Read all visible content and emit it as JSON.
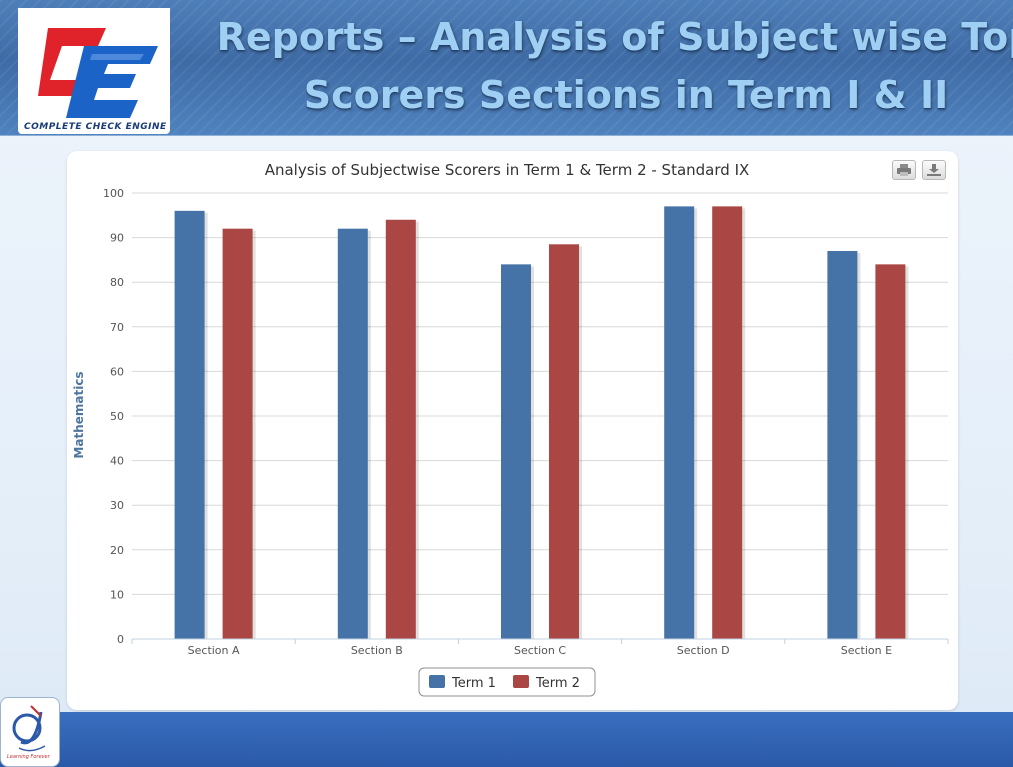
{
  "slide": {
    "title_line1": "Reports – Analysis of Subject wise Top",
    "title_line2": "Scorers Sections in Term I & II",
    "logo_text": "COMPLETE CHECK ENGINE",
    "footer_logo_text": "Learning Forever"
  },
  "toolbar": {
    "print_icon": "printer-icon",
    "download_icon": "download-icon"
  },
  "colors": {
    "term1": "#4572a7",
    "term2": "#aa4643",
    "grid": "#d8d8d8",
    "axis_text": "#555555",
    "axis_title": "#4d759e"
  },
  "chart_data": {
    "type": "bar",
    "title": "Analysis of Subjectwise Scorers in Term 1 & Term 2 - Standard IX",
    "xlabel": "",
    "ylabel": "Mathematics",
    "categories": [
      "Section A",
      "Section B",
      "Section C",
      "Section D",
      "Section E"
    ],
    "series": [
      {
        "name": "Term 1",
        "values": [
          96,
          92,
          84,
          97,
          87
        ]
      },
      {
        "name": "Term 2",
        "values": [
          92,
          94,
          88.5,
          97,
          84
        ]
      }
    ],
    "ylim": [
      0,
      100
    ],
    "yticks": [
      0,
      10,
      20,
      30,
      40,
      50,
      60,
      70,
      80,
      90,
      100
    ],
    "grid": true,
    "legend": "bottom-center"
  }
}
